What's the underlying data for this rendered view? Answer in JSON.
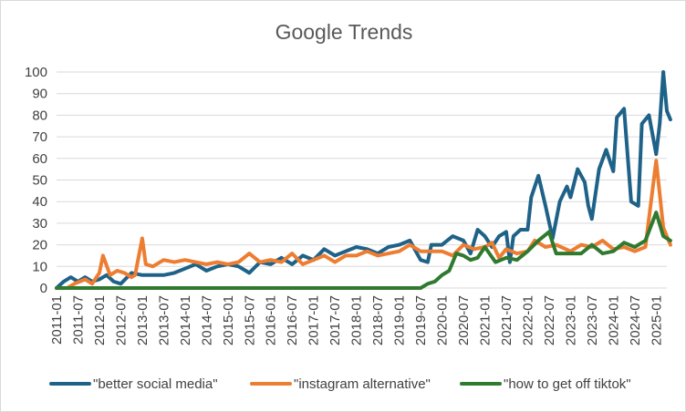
{
  "chart_data": {
    "type": "line",
    "title": "Google Trends",
    "xlabel": "",
    "ylabel": "",
    "ylim": [
      0,
      100
    ],
    "yticks": [
      0,
      10,
      20,
      30,
      40,
      50,
      60,
      70,
      80,
      90,
      100
    ],
    "grid": "horizontal",
    "legend_position": "bottom",
    "x_tick_labels": [
      "2011-01",
      "2011-07",
      "2012-01",
      "2012-07",
      "2013-01",
      "2013-07",
      "2014-01",
      "2014-07",
      "2015-01",
      "2015-07",
      "2016-01",
      "2016-07",
      "2017-01",
      "2017-07",
      "2018-01",
      "2018-07",
      "2019-01",
      "2019-07",
      "2020-01",
      "2020-07",
      "2021-01",
      "2021-07",
      "2022-01",
      "2022-07",
      "2023-01",
      "2023-07",
      "2024-01",
      "2024-07",
      "2025-01"
    ],
    "x_start": "2011-01",
    "x_end": "2025-04",
    "series": [
      {
        "name": "\"better social media\"",
        "color": "#1f6288",
        "points": [
          [
            "2011-01",
            0
          ],
          [
            "2011-03",
            3
          ],
          [
            "2011-05",
            5
          ],
          [
            "2011-07",
            3
          ],
          [
            "2011-09",
            5
          ],
          [
            "2011-11",
            3
          ],
          [
            "2012-01",
            4
          ],
          [
            "2012-03",
            6
          ],
          [
            "2012-05",
            3
          ],
          [
            "2012-07",
            2
          ],
          [
            "2012-10",
            7
          ],
          [
            "2013-01",
            6
          ],
          [
            "2013-04",
            6
          ],
          [
            "2013-07",
            6
          ],
          [
            "2013-10",
            7
          ],
          [
            "2014-01",
            9
          ],
          [
            "2014-04",
            11
          ],
          [
            "2014-07",
            8
          ],
          [
            "2014-10",
            10
          ],
          [
            "2015-01",
            11
          ],
          [
            "2015-04",
            10
          ],
          [
            "2015-07",
            7
          ],
          [
            "2015-10",
            12
          ],
          [
            "2016-01",
            11
          ],
          [
            "2016-04",
            14
          ],
          [
            "2016-07",
            11
          ],
          [
            "2016-10",
            15
          ],
          [
            "2017-01",
            13
          ],
          [
            "2017-04",
            18
          ],
          [
            "2017-07",
            15
          ],
          [
            "2017-10",
            17
          ],
          [
            "2018-01",
            19
          ],
          [
            "2018-04",
            18
          ],
          [
            "2018-07",
            16
          ],
          [
            "2018-10",
            19
          ],
          [
            "2019-01",
            20
          ],
          [
            "2019-04",
            22
          ],
          [
            "2019-07",
            13
          ],
          [
            "2019-09",
            12
          ],
          [
            "2019-10",
            20
          ],
          [
            "2020-01",
            20
          ],
          [
            "2020-04",
            24
          ],
          [
            "2020-07",
            22
          ],
          [
            "2020-09",
            16
          ],
          [
            "2020-11",
            27
          ],
          [
            "2021-01",
            24
          ],
          [
            "2021-03",
            19
          ],
          [
            "2021-05",
            24
          ],
          [
            "2021-07",
            26
          ],
          [
            "2021-08",
            12
          ],
          [
            "2021-09",
            24
          ],
          [
            "2021-11",
            27
          ],
          [
            "2022-01",
            27
          ],
          [
            "2022-02",
            42
          ],
          [
            "2022-04",
            52
          ],
          [
            "2022-06",
            38
          ],
          [
            "2022-08",
            23
          ],
          [
            "2022-10",
            40
          ],
          [
            "2022-12",
            47
          ],
          [
            "2023-01",
            42
          ],
          [
            "2023-03",
            55
          ],
          [
            "2023-05",
            49
          ],
          [
            "2023-06",
            38
          ],
          [
            "2023-07",
            32
          ],
          [
            "2023-09",
            55
          ],
          [
            "2023-11",
            64
          ],
          [
            "2024-01",
            54
          ],
          [
            "2024-02",
            79
          ],
          [
            "2024-04",
            83
          ],
          [
            "2024-06",
            40
          ],
          [
            "2024-08",
            38
          ],
          [
            "2024-09",
            76
          ],
          [
            "2024-11",
            80
          ],
          [
            "2025-01",
            62
          ],
          [
            "2025-02",
            76
          ],
          [
            "2025-03",
            100
          ],
          [
            "2025-04",
            82
          ],
          [
            "2025-05",
            78
          ]
        ]
      },
      {
        "name": "\"instagram alternative\"",
        "color": "#ed7d31",
        "points": [
          [
            "2011-01",
            0
          ],
          [
            "2011-04",
            0
          ],
          [
            "2011-06",
            2
          ],
          [
            "2011-09",
            4
          ],
          [
            "2011-11",
            2
          ],
          [
            "2012-01",
            7
          ],
          [
            "2012-02",
            15
          ],
          [
            "2012-04",
            6
          ],
          [
            "2012-06",
            8
          ],
          [
            "2012-08",
            7
          ],
          [
            "2012-10",
            5
          ],
          [
            "2012-11",
            6
          ],
          [
            "2013-01",
            23
          ],
          [
            "2013-02",
            11
          ],
          [
            "2013-04",
            10
          ],
          [
            "2013-07",
            13
          ],
          [
            "2013-10",
            12
          ],
          [
            "2014-01",
            13
          ],
          [
            "2014-04",
            12
          ],
          [
            "2014-07",
            11
          ],
          [
            "2014-10",
            12
          ],
          [
            "2015-01",
            11
          ],
          [
            "2015-04",
            12
          ],
          [
            "2015-07",
            16
          ],
          [
            "2015-10",
            12
          ],
          [
            "2016-01",
            13
          ],
          [
            "2016-04",
            12
          ],
          [
            "2016-07",
            16
          ],
          [
            "2016-10",
            11
          ],
          [
            "2017-01",
            13
          ],
          [
            "2017-04",
            15
          ],
          [
            "2017-07",
            12
          ],
          [
            "2017-10",
            15
          ],
          [
            "2018-01",
            15
          ],
          [
            "2018-04",
            17
          ],
          [
            "2018-07",
            15
          ],
          [
            "2018-10",
            16
          ],
          [
            "2019-01",
            17
          ],
          [
            "2019-04",
            20
          ],
          [
            "2019-07",
            17
          ],
          [
            "2019-10",
            17
          ],
          [
            "2020-01",
            17
          ],
          [
            "2020-04",
            15
          ],
          [
            "2020-07",
            20
          ],
          [
            "2020-10",
            18
          ],
          [
            "2021-01",
            19
          ],
          [
            "2021-03",
            21
          ],
          [
            "2021-05",
            14
          ],
          [
            "2021-07",
            18
          ],
          [
            "2021-10",
            16
          ],
          [
            "2022-01",
            17
          ],
          [
            "2022-03",
            22
          ],
          [
            "2022-06",
            19
          ],
          [
            "2022-09",
            20
          ],
          [
            "2023-01",
            17
          ],
          [
            "2023-04",
            20
          ],
          [
            "2023-07",
            19
          ],
          [
            "2023-10",
            22
          ],
          [
            "2024-01",
            18
          ],
          [
            "2024-04",
            19
          ],
          [
            "2024-07",
            17
          ],
          [
            "2024-10",
            19
          ],
          [
            "2025-01",
            59
          ],
          [
            "2025-03",
            28
          ],
          [
            "2025-05",
            20
          ]
        ]
      },
      {
        "name": "\"how to get off tiktok\"",
        "color": "#2f7a2f",
        "points": [
          [
            "2011-01",
            0
          ],
          [
            "2019-07",
            0
          ],
          [
            "2019-09",
            2
          ],
          [
            "2019-11",
            3
          ],
          [
            "2020-01",
            6
          ],
          [
            "2020-03",
            8
          ],
          [
            "2020-05",
            16
          ],
          [
            "2020-07",
            15
          ],
          [
            "2020-09",
            13
          ],
          [
            "2020-11",
            14
          ],
          [
            "2021-01",
            19
          ],
          [
            "2021-04",
            12
          ],
          [
            "2021-07",
            14
          ],
          [
            "2021-10",
            13
          ],
          [
            "2022-01",
            17
          ],
          [
            "2022-04",
            22
          ],
          [
            "2022-07",
            26
          ],
          [
            "2022-09",
            16
          ],
          [
            "2023-01",
            16
          ],
          [
            "2023-04",
            16
          ],
          [
            "2023-07",
            20
          ],
          [
            "2023-10",
            16
          ],
          [
            "2024-01",
            17
          ],
          [
            "2024-04",
            21
          ],
          [
            "2024-07",
            19
          ],
          [
            "2024-10",
            22
          ],
          [
            "2025-01",
            35
          ],
          [
            "2025-03",
            24
          ],
          [
            "2025-05",
            22
          ]
        ]
      }
    ]
  }
}
